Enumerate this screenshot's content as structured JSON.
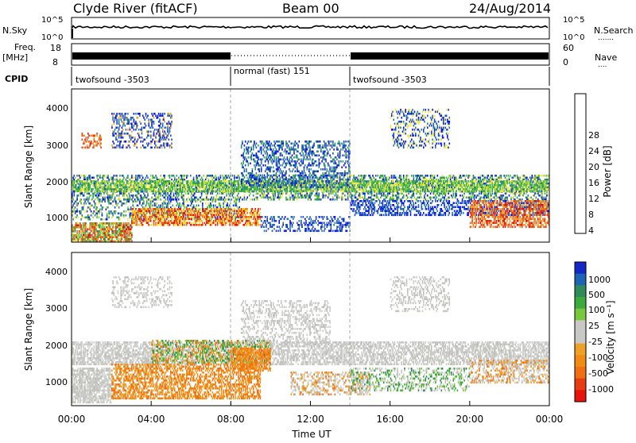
{
  "header": {
    "station": "Clyde River (fitACF)",
    "beam": "Beam 00",
    "date": "24/Aug/2014"
  },
  "noise_panel": {
    "left_label": "N.Sky",
    "left_ticks": [
      "10^5",
      "10^0"
    ],
    "right_ticks": [
      "10^5",
      "10^0"
    ],
    "right_label": "N.Search",
    "right_legend_dots": "......."
  },
  "freq_panel": {
    "label_line1": "Freq.",
    "label_line2": "[MHz]",
    "left_ticks": [
      "18",
      "8"
    ],
    "right_ticks": [
      "60",
      "0"
    ],
    "right_label": "Nave",
    "right_legend_dots": "...."
  },
  "cpid": {
    "label": "CPID",
    "segments": [
      {
        "name": "twofsound -3503",
        "start_hour": 0,
        "end_hour": 8
      },
      {
        "name": "normal (fast) 151",
        "start_hour": 8,
        "end_hour": 14
      },
      {
        "name": "twofsound -3503",
        "start_hour": 14,
        "end_hour": 24
      }
    ]
  },
  "power_panel": {
    "ylabel": "Slant Range [km]",
    "yticks": [
      "4000",
      "3000",
      "2000",
      "1000"
    ],
    "colorbar_label": "Power [dB]",
    "colorbar_ticks": [
      "28",
      "24",
      "20",
      "16",
      "12",
      "8",
      "4"
    ],
    "colors": [
      "#0a14e6",
      "#1c49c8",
      "#2a78a8",
      "#2f9a6a",
      "#3cb43c",
      "#8cd232",
      "#f0e63c",
      "#f0a028",
      "#eb6e1e",
      "#e63c14",
      "#e6140a"
    ]
  },
  "velocity_panel": {
    "ylabel": "Slant Range [km]",
    "yticks": [
      "4000",
      "3000",
      "2000",
      "1000"
    ],
    "colorbar_label": "Velocity [m s⁻¹]",
    "colorbar_ticks": [
      "1000",
      "500",
      "100",
      "25",
      "-25",
      "-100",
      "-500",
      "-1000"
    ],
    "colors": [
      "#1428c8",
      "#1e64b4",
      "#2f8c5a",
      "#3caa3c",
      "#78c83c",
      "#c8c8c4",
      "#c8c8c4",
      "#f0a028",
      "#f08c14",
      "#f06e14",
      "#e63c14",
      "#e6140a"
    ]
  },
  "xaxis": {
    "ticks": [
      "00:00",
      "04:00",
      "08:00",
      "12:00",
      "16:00",
      "20:00",
      "00:00"
    ],
    "label": "Time UT"
  },
  "chart_data": {
    "type": "heatmap",
    "x_range_hours": [
      0,
      24
    ],
    "y_range_km": [
      180,
      4500
    ],
    "power_colorbar_db": [
      4,
      32
    ],
    "velocity_colorbar_ms": [
      -1000,
      1000
    ]
  }
}
